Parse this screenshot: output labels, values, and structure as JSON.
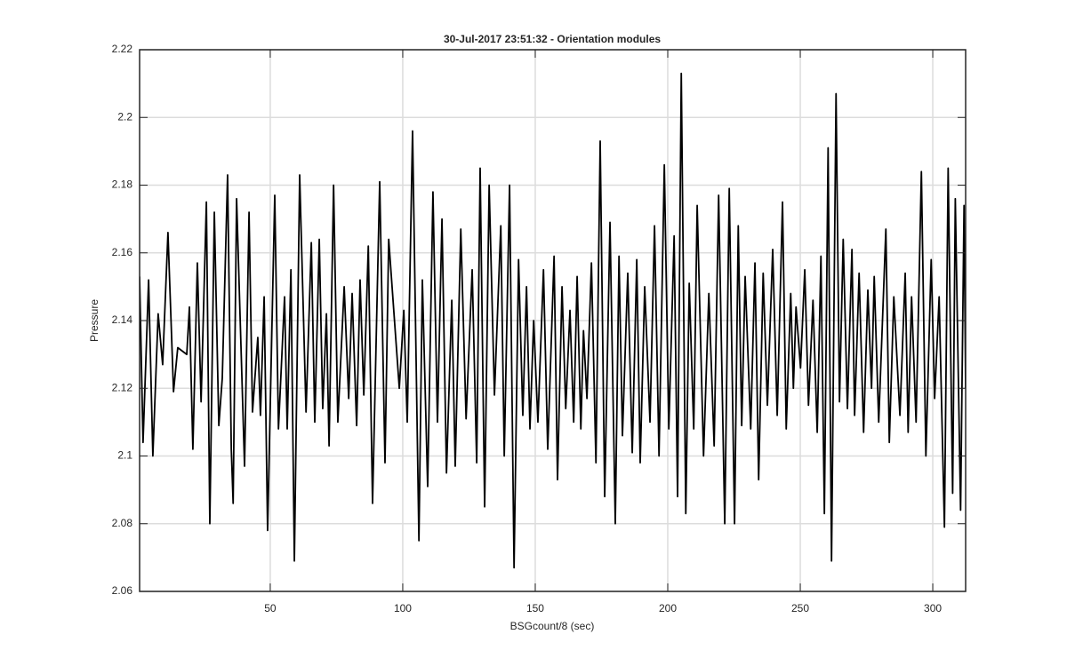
{
  "chart_data": {
    "type": "line",
    "title": "30-Jul-2017 23:51:32 - Orientation modules",
    "xlabel": "BSGcount/8 (sec)",
    "ylabel": "Pressure",
    "xlim": [
      0.7,
      312.4
    ],
    "ylim": [
      2.06,
      2.22
    ],
    "xticks": [
      50,
      100,
      150,
      200,
      250,
      300
    ],
    "yticks": [
      2.06,
      2.08,
      2.1,
      2.12,
      2.14,
      2.16,
      2.18,
      2.2,
      2.22
    ],
    "grid": true,
    "color": "#000000",
    "x": [
      0.7,
      2.0,
      4.1,
      5.7,
      7.7,
      9.4,
      11.4,
      13.5,
      15.1,
      18.5,
      19.5,
      20.8,
      22.5,
      23.9,
      25.9,
      27.2,
      28.9,
      30.6,
      31.9,
      33.9,
      35.3,
      36.0,
      37.3,
      40.3,
      42.0,
      43.3,
      45.3,
      46.3,
      47.7,
      49.0,
      51.7,
      53.1,
      55.4,
      56.4,
      57.8,
      59.1,
      61.1,
      63.5,
      65.5,
      66.8,
      68.5,
      69.8,
      71.2,
      72.2,
      73.9,
      75.5,
      77.9,
      79.6,
      80.9,
      82.6,
      83.9,
      85.3,
      87.0,
      88.6,
      91.3,
      93.3,
      94.7,
      98.7,
      100.4,
      101.7,
      103.7,
      106.1,
      107.4,
      109.4,
      111.4,
      113.1,
      114.8,
      116.5,
      118.5,
      119.8,
      121.9,
      123.9,
      126.2,
      127.9,
      129.2,
      130.9,
      132.6,
      134.6,
      137.0,
      138.3,
      140.3,
      142.0,
      143.7,
      145.3,
      146.7,
      148.0,
      149.4,
      151.0,
      153.1,
      154.7,
      157.1,
      158.4,
      160.1,
      161.5,
      163.1,
      164.5,
      165.8,
      167.2,
      168.2,
      169.5,
      171.2,
      172.9,
      174.5,
      176.2,
      178.2,
      180.2,
      181.6,
      182.9,
      184.9,
      186.6,
      188.3,
      189.6,
      191.3,
      193.3,
      195.0,
      196.7,
      198.7,
      200.4,
      202.4,
      203.7,
      205.1,
      206.8,
      208.1,
      209.8,
      211.1,
      213.5,
      215.5,
      217.5,
      219.2,
      221.5,
      223.2,
      225.2,
      226.6,
      227.9,
      229.2,
      231.3,
      232.9,
      234.3,
      236.0,
      237.6,
      239.6,
      241.3,
      243.3,
      244.7,
      246.4,
      247.4,
      248.4,
      250.1,
      251.7,
      253.1,
      254.8,
      256.4,
      257.8,
      259.1,
      260.5,
      261.8,
      263.5,
      264.8,
      266.2,
      267.8,
      269.5,
      270.5,
      272.2,
      273.9,
      275.5,
      276.9,
      277.9,
      279.6,
      282.3,
      283.6,
      285.3,
      287.6,
      289.6,
      290.7,
      292.0,
      293.7,
      295.7,
      297.4,
      299.4,
      300.7,
      302.4,
      304.4,
      305.8,
      307.5,
      308.5,
      310.5,
      311.8,
      312.4
    ],
    "values": [
      2.153,
      2.104,
      2.152,
      2.1,
      2.142,
      2.127,
      2.166,
      2.119,
      2.132,
      2.13,
      2.144,
      2.102,
      2.157,
      2.116,
      2.175,
      2.08,
      2.172,
      2.109,
      2.123,
      2.183,
      2.102,
      2.086,
      2.176,
      2.097,
      2.172,
      2.113,
      2.135,
      2.112,
      2.147,
      2.078,
      2.177,
      2.108,
      2.147,
      2.108,
      2.155,
      2.069,
      2.183,
      2.113,
      2.163,
      2.11,
      2.164,
      2.114,
      2.142,
      2.103,
      2.18,
      2.11,
      2.15,
      2.117,
      2.148,
      2.109,
      2.152,
      2.118,
      2.162,
      2.086,
      2.181,
      2.098,
      2.164,
      2.12,
      2.143,
      2.11,
      2.196,
      2.075,
      2.152,
      2.091,
      2.178,
      2.11,
      2.17,
      2.095,
      2.146,
      2.097,
      2.167,
      2.111,
      2.155,
      2.098,
      2.185,
      2.085,
      2.18,
      2.118,
      2.168,
      2.1,
      2.18,
      2.067,
      2.158,
      2.112,
      2.15,
      2.108,
      2.14,
      2.11,
      2.155,
      2.102,
      2.159,
      2.093,
      2.15,
      2.114,
      2.143,
      2.11,
      2.153,
      2.108,
      2.137,
      2.117,
      2.157,
      2.098,
      2.193,
      2.088,
      2.169,
      2.08,
      2.159,
      2.106,
      2.154,
      2.101,
      2.158,
      2.098,
      2.15,
      2.11,
      2.168,
      2.1,
      2.186,
      2.108,
      2.165,
      2.088,
      2.213,
      2.083,
      2.151,
      2.108,
      2.174,
      2.1,
      2.148,
      2.103,
      2.177,
      2.08,
      2.179,
      2.08,
      2.168,
      2.109,
      2.153,
      2.108,
      2.157,
      2.093,
      2.154,
      2.115,
      2.161,
      2.112,
      2.175,
      2.108,
      2.148,
      2.12,
      2.144,
      2.126,
      2.155,
      2.115,
      2.146,
      2.107,
      2.159,
      2.083,
      2.191,
      2.069,
      2.207,
      2.116,
      2.164,
      2.114,
      2.161,
      2.112,
      2.154,
      2.107,
      2.149,
      2.12,
      2.153,
      2.11,
      2.167,
      2.104,
      2.147,
      2.112,
      2.154,
      2.107,
      2.147,
      2.11,
      2.184,
      2.1,
      2.158,
      2.117,
      2.147,
      2.079,
      2.185,
      2.089,
      2.176,
      2.084,
      2.174,
      2.12
    ]
  }
}
